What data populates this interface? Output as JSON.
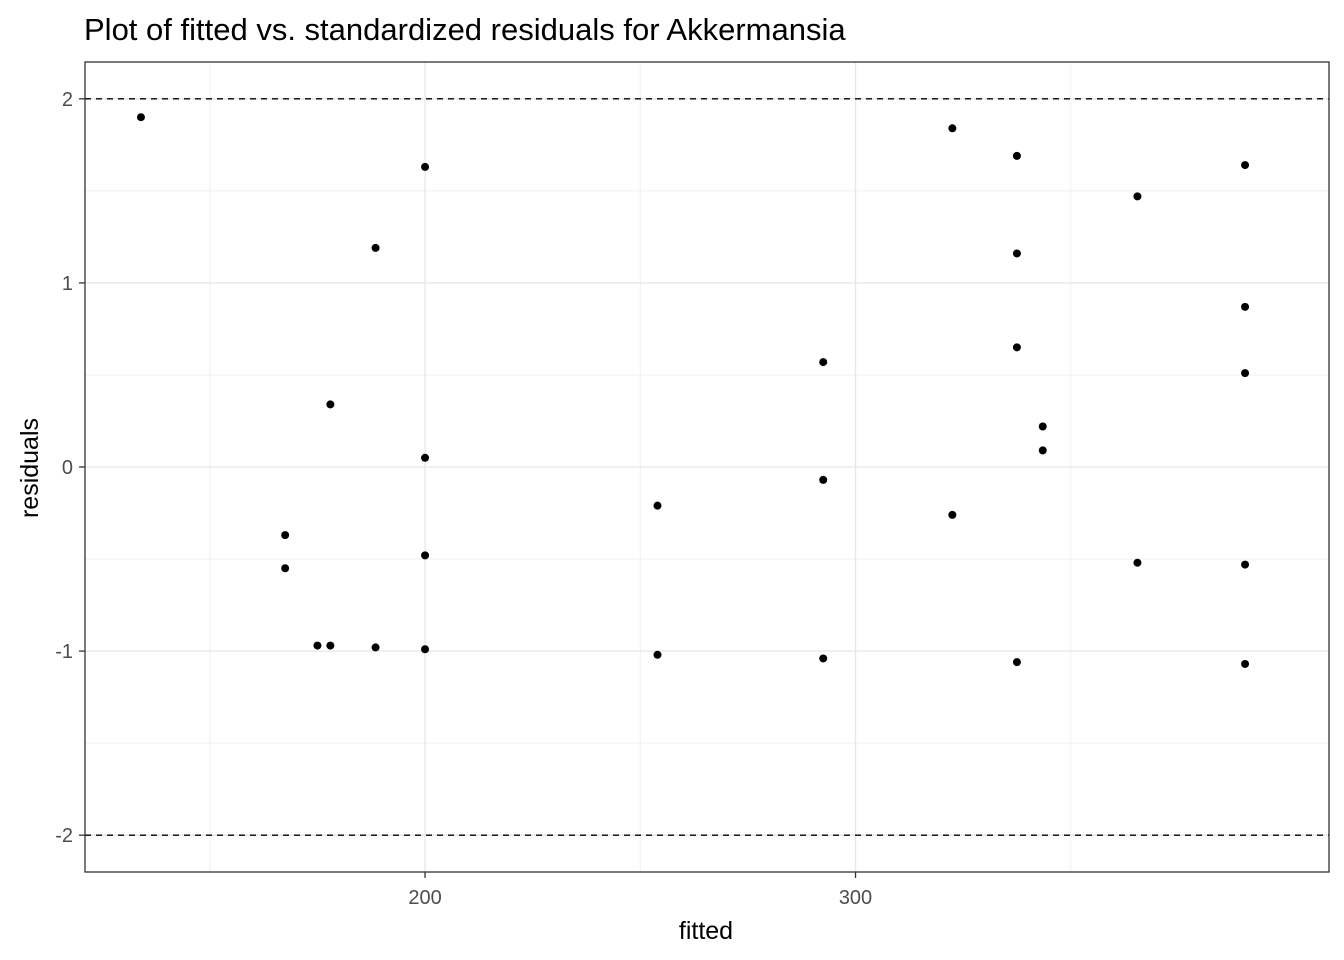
{
  "chart_data": {
    "type": "scatter",
    "title": "Plot of fitted vs. standardized residuals for Akkermansia",
    "xlabel": "fitted",
    "ylabel": "residuals",
    "xlim": [
      121,
      410
    ],
    "ylim": [
      -2.2,
      2.2
    ],
    "x_ticks": [
      200,
      300
    ],
    "y_ticks": [
      -2,
      -1,
      0,
      1,
      2
    ],
    "x_minor_ticks": [
      150,
      250,
      350
    ],
    "y_minor_ticks": [
      -1.5,
      -0.5,
      0.5,
      1.5
    ],
    "reference_lines": [
      2,
      -2
    ],
    "grid": true,
    "point_color": "#000000",
    "points": [
      {
        "x": 134,
        "y": 1.9
      },
      {
        "x": 167.5,
        "y": -0.37
      },
      {
        "x": 167.5,
        "y": -0.55
      },
      {
        "x": 175,
        "y": -0.97
      },
      {
        "x": 178,
        "y": -0.97
      },
      {
        "x": 178,
        "y": 0.34
      },
      {
        "x": 188.5,
        "y": 1.19
      },
      {
        "x": 188.5,
        "y": -0.98
      },
      {
        "x": 200,
        "y": 1.63
      },
      {
        "x": 200,
        "y": 0.05
      },
      {
        "x": 200,
        "y": -0.48
      },
      {
        "x": 200,
        "y": -0.99
      },
      {
        "x": 254,
        "y": -0.21
      },
      {
        "x": 254,
        "y": -1.02
      },
      {
        "x": 292.5,
        "y": 0.57
      },
      {
        "x": 292.5,
        "y": -0.07
      },
      {
        "x": 292.5,
        "y": -1.04
      },
      {
        "x": 322.5,
        "y": 1.84
      },
      {
        "x": 322.5,
        "y": -0.26
      },
      {
        "x": 337.5,
        "y": 1.69
      },
      {
        "x": 337.5,
        "y": 1.16
      },
      {
        "x": 337.5,
        "y": 0.65
      },
      {
        "x": 337.5,
        "y": -1.06
      },
      {
        "x": 343.5,
        "y": 0.22
      },
      {
        "x": 343.5,
        "y": 0.09
      },
      {
        "x": 365.5,
        "y": 1.47
      },
      {
        "x": 365.5,
        "y": -0.52
      },
      {
        "x": 390.5,
        "y": 1.64
      },
      {
        "x": 390.5,
        "y": 0.87
      },
      {
        "x": 390.5,
        "y": 0.51
      },
      {
        "x": 390.5,
        "y": -0.53
      },
      {
        "x": 390.5,
        "y": -1.07
      }
    ]
  }
}
